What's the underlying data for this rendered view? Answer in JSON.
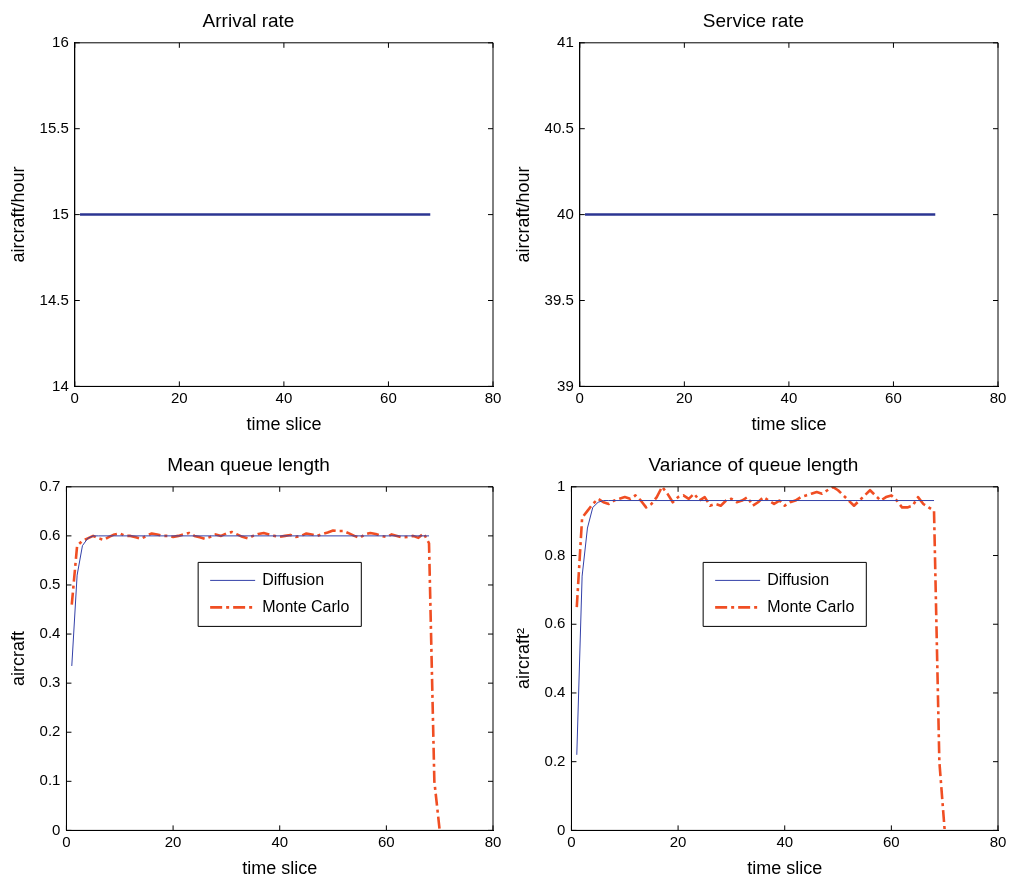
{
  "chart_data": [
    {
      "type": "line",
      "title": "Arrival rate",
      "xlabel": "time slice",
      "ylabel": "aircraft/hour",
      "xlim": [
        0,
        80
      ],
      "xticks": [
        0,
        20,
        40,
        60,
        80
      ],
      "ylim": [
        14,
        16
      ],
      "yticks": [
        14,
        14.5,
        15,
        15.5,
        16
      ],
      "grid": false,
      "legend": false,
      "series": [
        {
          "color": "#2b3592",
          "x": [
            1,
            68
          ],
          "values": [
            15,
            15
          ],
          "line_style": "solid"
        }
      ]
    },
    {
      "type": "line",
      "title": "Service rate",
      "xlabel": "time slice",
      "ylabel": "aircraft/hour",
      "xlim": [
        0,
        80
      ],
      "xticks": [
        0,
        20,
        40,
        60,
        80
      ],
      "ylim": [
        39,
        41
      ],
      "yticks": [
        39,
        39.5,
        40,
        40.5,
        41
      ],
      "grid": false,
      "legend": false,
      "series": [
        {
          "color": "#2b3592",
          "x": [
            1,
            68
          ],
          "values": [
            40,
            40
          ],
          "line_style": "solid"
        }
      ]
    },
    {
      "type": "line",
      "title": "Mean queue length",
      "xlabel": "time slice",
      "ylabel": "aircraft",
      "xlim": [
        0,
        80
      ],
      "xticks": [
        0,
        20,
        40,
        60,
        80
      ],
      "ylim": [
        0,
        0.7
      ],
      "yticks": [
        0,
        0.1,
        0.2,
        0.3,
        0.4,
        0.5,
        0.6,
        0.7
      ],
      "grid": false,
      "legend": "top",
      "series": [
        {
          "name": "Diffusion",
          "color": "#3340a8",
          "line_style": "solid",
          "x": [
            1,
            2,
            3,
            4,
            5,
            6,
            68
          ],
          "values": [
            0.335,
            0.52,
            0.58,
            0.595,
            0.6,
            0.6,
            0.6
          ]
        },
        {
          "name": "Monte Carlo",
          "color": "#f04e23",
          "line_style": "dashed",
          "x": [
            1,
            2,
            3,
            4,
            5,
            6,
            7,
            8,
            9,
            10,
            11,
            12,
            13,
            14,
            15,
            16,
            17,
            18,
            19,
            20,
            21,
            22,
            23,
            24,
            25,
            26,
            27,
            28,
            29,
            30,
            31,
            32,
            33,
            34,
            35,
            36,
            37,
            38,
            39,
            40,
            41,
            42,
            43,
            44,
            45,
            46,
            47,
            48,
            49,
            50,
            51,
            52,
            53,
            54,
            55,
            56,
            57,
            58,
            59,
            60,
            61,
            62,
            63,
            64,
            65,
            66,
            67,
            68,
            69,
            70
          ],
          "values": [
            0.46,
            0.58,
            0.59,
            0.595,
            0.6,
            0.595,
            0.592,
            0.598,
            0.603,
            0.605,
            0.6,
            0.6,
            0.597,
            0.594,
            0.6,
            0.605,
            0.603,
            0.6,
            0.6,
            0.598,
            0.6,
            0.603,
            0.606,
            0.6,
            0.597,
            0.594,
            0.598,
            0.603,
            0.6,
            0.605,
            0.608,
            0.603,
            0.598,
            0.595,
            0.6,
            0.604,
            0.606,
            0.603,
            0.6,
            0.598,
            0.6,
            0.602,
            0.598,
            0.6,
            0.605,
            0.603,
            0.6,
            0.604,
            0.607,
            0.611,
            0.61,
            0.61,
            0.605,
            0.6,
            0.596,
            0.603,
            0.606,
            0.604,
            0.6,
            0.598,
            0.603,
            0.6,
            0.597,
            0.598,
            0.6,
            0.596,
            0.605,
            0.585,
            0.1,
            0
          ]
        }
      ]
    },
    {
      "type": "line",
      "title": "Variance of queue length",
      "xlabel": "time slice",
      "ylabel": "aircraft²",
      "xlim": [
        0,
        80
      ],
      "xticks": [
        0,
        20,
        40,
        60,
        80
      ],
      "ylim": [
        0,
        1
      ],
      "yticks": [
        0,
        0.2,
        0.4,
        0.6,
        0.8,
        1
      ],
      "grid": false,
      "legend": "top",
      "series": [
        {
          "name": "Diffusion",
          "color": "#3340a8",
          "line_style": "solid",
          "x": [
            1,
            2,
            3,
            4,
            5,
            6,
            7,
            68
          ],
          "values": [
            0.22,
            0.74,
            0.88,
            0.94,
            0.955,
            0.96,
            0.96,
            0.96
          ]
        },
        {
          "name": "Monte Carlo",
          "color": "#f04e23",
          "line_style": "dashed",
          "x": [
            1,
            2,
            3,
            4,
            5,
            6,
            7,
            8,
            9,
            10,
            11,
            12,
            13,
            14,
            15,
            16,
            17,
            18,
            19,
            20,
            21,
            22,
            23,
            24,
            25,
            26,
            27,
            28,
            29,
            30,
            31,
            32,
            33,
            34,
            35,
            36,
            37,
            38,
            39,
            40,
            41,
            42,
            43,
            44,
            45,
            46,
            47,
            48,
            49,
            50,
            51,
            52,
            53,
            54,
            55,
            56,
            57,
            58,
            59,
            60,
            61,
            62,
            63,
            64,
            65,
            66,
            67,
            68,
            69,
            70
          ],
          "values": [
            0.65,
            0.91,
            0.93,
            0.95,
            0.965,
            0.955,
            0.95,
            0.96,
            0.965,
            0.97,
            0.965,
            0.975,
            0.96,
            0.94,
            0.95,
            0.97,
            1.0,
            0.98,
            0.955,
            0.97,
            0.975,
            0.965,
            0.98,
            0.96,
            0.97,
            0.945,
            0.95,
            0.945,
            0.96,
            0.965,
            0.955,
            0.96,
            0.97,
            0.945,
            0.955,
            0.97,
            0.96,
            0.95,
            0.96,
            0.945,
            0.955,
            0.96,
            0.97,
            0.975,
            0.98,
            0.985,
            0.98,
            0.99,
            1.0,
            0.99,
            0.975,
            0.96,
            0.945,
            0.96,
            0.975,
            0.99,
            0.975,
            0.96,
            0.97,
            0.975,
            0.96,
            0.94,
            0.94,
            0.945,
            0.97,
            0.95,
            0.94,
            0.93,
            0.2,
            0
          ]
        }
      ]
    }
  ]
}
